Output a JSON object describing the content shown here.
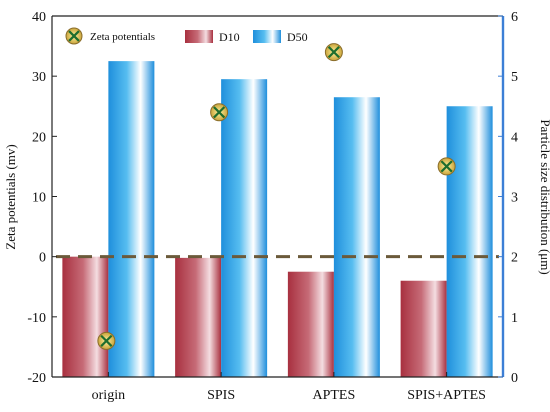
{
  "chart_data": {
    "type": "bar",
    "categories": [
      "origin",
      "SPIS",
      "APTES",
      "SPIS+APTES"
    ],
    "left_axis": {
      "label": "Zeta potentials (mv)",
      "ylim": [
        -20,
        40
      ],
      "ticks": [
        -20,
        -10,
        0,
        10,
        20,
        30,
        40
      ]
    },
    "right_axis": {
      "label": "Particle size distribution (μm)",
      "ylim": [
        0,
        6
      ],
      "ticks": [
        0,
        1,
        2,
        3,
        4,
        5,
        6
      ]
    },
    "series": [
      {
        "name": "D10",
        "axis": "right",
        "kind": "bar",
        "values": [
          2.0,
          1.98,
          1.75,
          1.6
        ],
        "color": "#b84a5a"
      },
      {
        "name": "D50",
        "axis": "right",
        "kind": "bar",
        "values": [
          5.25,
          4.95,
          4.65,
          4.5
        ],
        "color": "#3aa8e6"
      },
      {
        "name": "Zeta potentials",
        "axis": "left",
        "kind": "scatter",
        "values": [
          -14,
          24,
          34,
          15
        ],
        "color": "#e8d35a"
      }
    ],
    "reference_line": {
      "axis": "left",
      "value": 0,
      "style": "dashed",
      "color": "#6b5a3a"
    },
    "legend": {
      "placement": "top-left",
      "entries": [
        "Zeta potentials",
        "D10",
        "D50"
      ]
    },
    "grid": false
  }
}
